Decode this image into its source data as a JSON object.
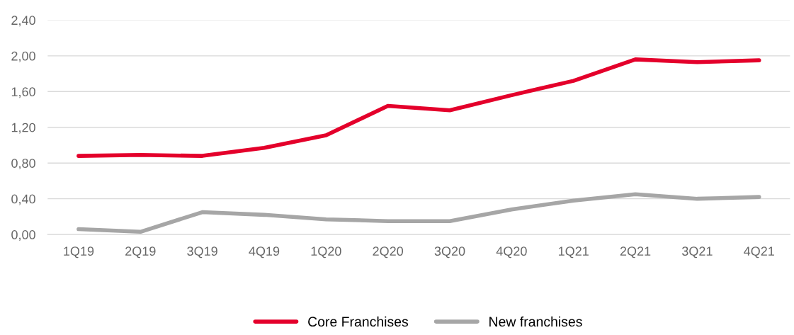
{
  "chart_data": {
    "type": "line",
    "categories": [
      "1Q19",
      "2Q19",
      "3Q19",
      "4Q19",
      "1Q20",
      "2Q20",
      "3Q20",
      "4Q20",
      "1Q21",
      "2Q21",
      "3Q21",
      "4Q21"
    ],
    "series": [
      {
        "name": "Core Franchises",
        "color": "#e4002b",
        "values": [
          0.88,
          0.89,
          0.88,
          0.97,
          1.11,
          1.44,
          1.39,
          1.56,
          1.72,
          1.96,
          1.93,
          1.95
        ]
      },
      {
        "name": "New franchises",
        "color": "#a6a6a6",
        "values": [
          0.06,
          0.03,
          0.25,
          0.22,
          0.17,
          0.15,
          0.15,
          0.28,
          0.38,
          0.45,
          0.4,
          0.42
        ]
      }
    ],
    "ylim": [
      0,
      2.4
    ],
    "yticks": [
      {
        "value": 0,
        "label": "0,00"
      },
      {
        "value": 0.4,
        "label": "0,40"
      },
      {
        "value": 0.8,
        "label": "0,80"
      },
      {
        "value": 1.2,
        "label": "1,20"
      },
      {
        "value": 1.6,
        "label": "1,60"
      },
      {
        "value": 2.0,
        "label": "2,00"
      },
      {
        "value": 2.4,
        "label": "2,40"
      }
    ],
    "grid": "y",
    "legend": "bottom",
    "marker": "none",
    "line_style": "solid"
  }
}
